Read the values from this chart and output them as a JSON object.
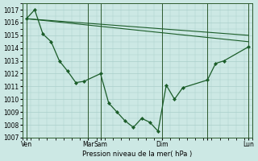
{
  "background_color": "#cce8e4",
  "grid_color": "#aacfca",
  "line_color": "#1a5c28",
  "marker_color": "#1a5c28",
  "xlabel": "Pression niveau de la mer( hPa )",
  "ylim": [
    1007,
    1017.5
  ],
  "yticks": [
    1007,
    1008,
    1009,
    1010,
    1011,
    1012,
    1013,
    1014,
    1015,
    1016,
    1017
  ],
  "xlim": [
    0,
    28
  ],
  "xtick_positions": [
    0.5,
    8,
    9.5,
    17,
    22.5,
    27.5
  ],
  "xtick_labels": [
    "Ven",
    "Mar",
    "Sam",
    "Dim",
    "",
    "Lun"
  ],
  "vline_positions": [
    0.5,
    8,
    9.5,
    17,
    22.5,
    27.5
  ],
  "series1_x": [
    0.5,
    1.5,
    2.5,
    3.5,
    4.5,
    5.5,
    6.5,
    7.5,
    9.5,
    10.5,
    11.5,
    12.5,
    13.5,
    14.5,
    15.5,
    16.5,
    17.5,
    18.5,
    19.5,
    22.5,
    23.5,
    24.5,
    27.5
  ],
  "series1_y": [
    1016.3,
    1017.0,
    1015.1,
    1014.5,
    1013.0,
    1012.2,
    1011.3,
    1011.4,
    1012.0,
    1009.7,
    1009.0,
    1008.3,
    1007.8,
    1008.5,
    1008.2,
    1007.5,
    1011.1,
    1010.0,
    1010.9,
    1011.5,
    1012.8,
    1013.0,
    1014.1
  ],
  "series2_x": [
    0.5,
    27.5
  ],
  "series2_y": [
    1016.3,
    1014.5
  ],
  "series3_x": [
    0.5,
    27.5
  ],
  "series3_y": [
    1016.3,
    1015.0
  ]
}
